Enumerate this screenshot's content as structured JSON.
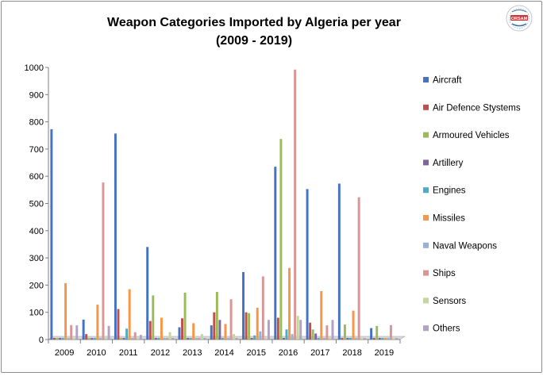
{
  "chart_data": {
    "type": "bar",
    "title": "Weapon Categories Imported by Algeria per year",
    "subtitle": "(2009 - 2019)",
    "logo_text": "ORSAM",
    "categories": [
      "2009",
      "2010",
      "2011",
      "2012",
      "2013",
      "2014",
      "2015",
      "2016",
      "2017",
      "2018",
      "2019"
    ],
    "ylim": [
      0,
      1000
    ],
    "yticks": [
      0,
      100,
      200,
      300,
      400,
      500,
      600,
      700,
      800,
      900,
      1000
    ],
    "grid": false,
    "legend": "right",
    "series": [
      {
        "name": "Aircraft",
        "color": "#4472c4",
        "values": [
          773,
          73,
          757,
          340,
          45,
          52,
          248,
          635,
          553,
          573,
          42
        ]
      },
      {
        "name": "Air Defence Stystems",
        "color": "#c0504d",
        "values": [
          0,
          20,
          112,
          68,
          78,
          100,
          100,
          80,
          62,
          0,
          0
        ]
      },
      {
        "name": "Armoured Vehicles",
        "color": "#9bbb59",
        "values": [
          0,
          0,
          0,
          162,
          172,
          175,
          97,
          737,
          37,
          55,
          50
        ]
      },
      {
        "name": "Artillery",
        "color": "#8064a2",
        "values": [
          0,
          0,
          0,
          0,
          0,
          72,
          0,
          0,
          22,
          0,
          0
        ]
      },
      {
        "name": "Engines",
        "color": "#4bacc6",
        "values": [
          0,
          0,
          40,
          0,
          0,
          0,
          15,
          37,
          0,
          0,
          0
        ]
      },
      {
        "name": "Missiles",
        "color": "#f79646",
        "values": [
          207,
          128,
          185,
          80,
          60,
          57,
          117,
          263,
          178,
          106,
          0
        ]
      },
      {
        "name": "Naval Weapons",
        "color": "#95b3d7",
        "values": [
          0,
          0,
          0,
          0,
          0,
          0,
          30,
          20,
          0,
          0,
          0
        ]
      },
      {
        "name": "Ships",
        "color": "#da9694",
        "values": [
          53,
          577,
          27,
          0,
          0,
          148,
          232,
          992,
          52,
          523,
          53
        ]
      },
      {
        "name": "Sensors",
        "color": "#c3d69b",
        "values": [
          0,
          0,
          0,
          27,
          20,
          20,
          0,
          87,
          0,
          0,
          0
        ]
      },
      {
        "name": "Others",
        "color": "#b1a0c7",
        "values": [
          52,
          50,
          17,
          0,
          0,
          0,
          72,
          72,
          72,
          0,
          0
        ]
      }
    ]
  }
}
